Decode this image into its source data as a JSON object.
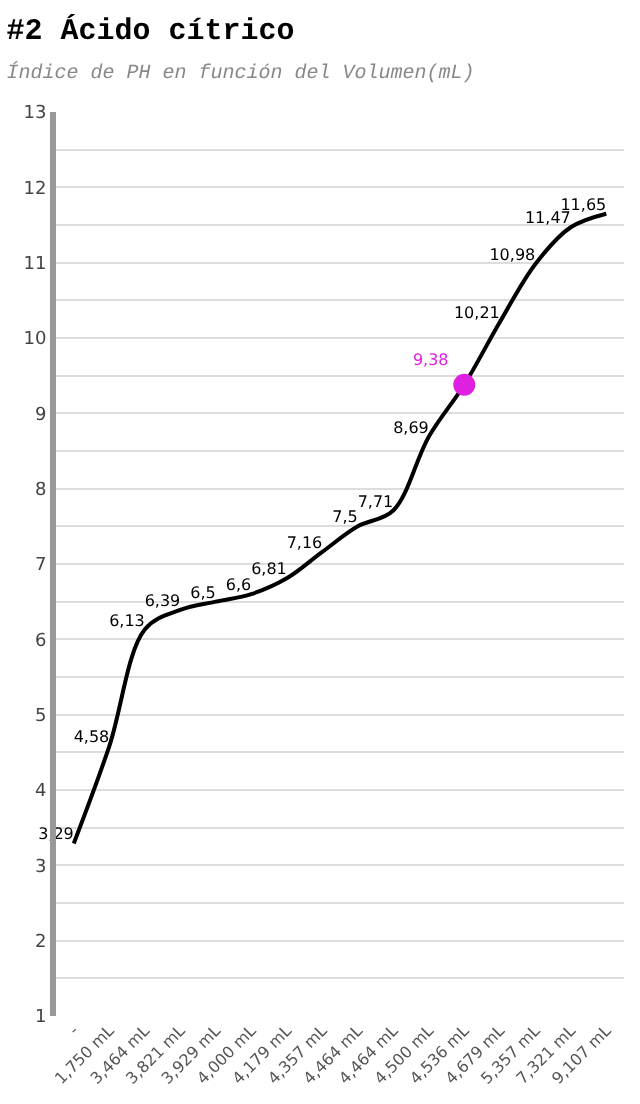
{
  "chart_data": {
    "type": "line",
    "title": "#2 Ácido cítrico",
    "subtitle": "Índice de PH en función del Volumen(mL)",
    "categories": [
      "-",
      "1,750 mL",
      "3,464 mL",
      "3,821 mL",
      "3,929 mL",
      "4,000 mL",
      "4,179 mL",
      "4,357 mL",
      "4,464 mL",
      "4,464 mL",
      "4,500 mL",
      "4,536 mL",
      "4,679 mL",
      "5,357 mL",
      "7,321 mL",
      "9,107 mL"
    ],
    "series": [
      {
        "color": "#000000",
        "marker": "none",
        "values": [
          3.29,
          4.58,
          6.13,
          6.39,
          6.5,
          6.6,
          6.81,
          7.16,
          7.5,
          7.71,
          8.69,
          9.38,
          10.21,
          10.98,
          11.47,
          11.65
        ],
        "value_labels": [
          "3,29",
          "4,58",
          "6,13",
          "6,39",
          "6,5",
          "6,6",
          "6,81",
          "7,16",
          "7,5",
          "7,71",
          "8,69",
          null,
          "10,21",
          "10,98",
          "11,47",
          "11,65"
        ]
      },
      {
        "type": "scatter",
        "color": "#e020e0",
        "marker": "circle",
        "values": [
          null,
          null,
          null,
          null,
          null,
          null,
          null,
          null,
          null,
          null,
          null,
          9.38,
          null,
          null,
          null,
          null
        ],
        "value_labels": [
          null,
          null,
          null,
          null,
          null,
          null,
          null,
          null,
          null,
          null,
          null,
          "9,38",
          null,
          null,
          null,
          null
        ]
      }
    ],
    "ylim": [
      1,
      13
    ],
    "yticks": [
      1,
      {
        "value": 1.5,
        "label": null
      },
      2,
      {
        "value": 2.5,
        "label": null
      },
      3,
      {
        "value": 3.5,
        "label": null
      },
      4,
      {
        "value": 4.5,
        "label": null
      },
      5,
      {
        "value": 5.5,
        "label": null
      },
      6,
      {
        "value": 6.5,
        "label": null
      },
      7,
      {
        "value": 7.5,
        "label": null
      },
      8,
      {
        "value": 8.5,
        "label": null
      },
      9,
      {
        "value": 9.5,
        "label": null
      },
      10,
      {
        "value": 10.5,
        "label": null
      },
      11,
      {
        "value": 11.5,
        "label": null
      },
      12,
      {
        "value": 12.5,
        "label": null
      },
      13
    ],
    "grid": "y"
  }
}
